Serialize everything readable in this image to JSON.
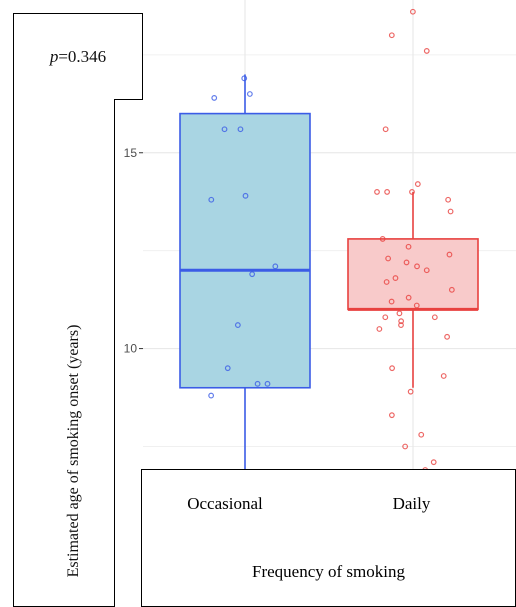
{
  "annotation": {
    "p_symbol": "p",
    "p_value_text": "=0.346"
  },
  "colors": {
    "occasional_fill": "#a9d5e3",
    "occasional_stroke": "#3b5ce6",
    "daily_fill": "#f8caca",
    "daily_stroke": "#e8413f",
    "grid": "#e6e6e6",
    "tick_text": "#4d4d4d"
  },
  "chart_data": {
    "type": "box",
    "ylabel": "Estimated age of smoking onset (years)",
    "xlabel": "Frequency of smoking",
    "ylim": [
      6.9,
      18.9
    ],
    "yticks": [
      10,
      15
    ],
    "y_tick_labels": [
      "10",
      "15"
    ],
    "categories": [
      "Occasional",
      "Daily"
    ],
    "series": [
      {
        "category": "Occasional",
        "box": {
          "whisker_low": 6.9,
          "q1": 9.0,
          "median": 12.0,
          "q3": 16.0,
          "whisker_high": 17.0
        },
        "points": [
          16.9,
          16.5,
          16.4,
          15.6,
          15.6,
          13.9,
          13.8,
          12.1,
          11.9,
          10.6,
          9.5,
          9.1,
          9.1,
          8.8
        ]
      },
      {
        "category": "Daily",
        "box": {
          "whisker_low": 9.0,
          "q1": 11.0,
          "median": 11.0,
          "q3": 12.8,
          "whisker_high": 14.0
        },
        "points": [
          18.6,
          18.0,
          17.6,
          15.6,
          14.2,
          14.0,
          14.0,
          14.0,
          13.8,
          13.5,
          12.8,
          12.6,
          12.4,
          12.3,
          12.2,
          12.1,
          12.0,
          11.8,
          11.7,
          11.5,
          11.3,
          11.2,
          11.1,
          10.9,
          10.8,
          10.8,
          10.7,
          10.6,
          10.5,
          10.3,
          9.5,
          9.3,
          8.9,
          8.3,
          7.8,
          7.5,
          7.1,
          6.9
        ]
      }
    ]
  }
}
